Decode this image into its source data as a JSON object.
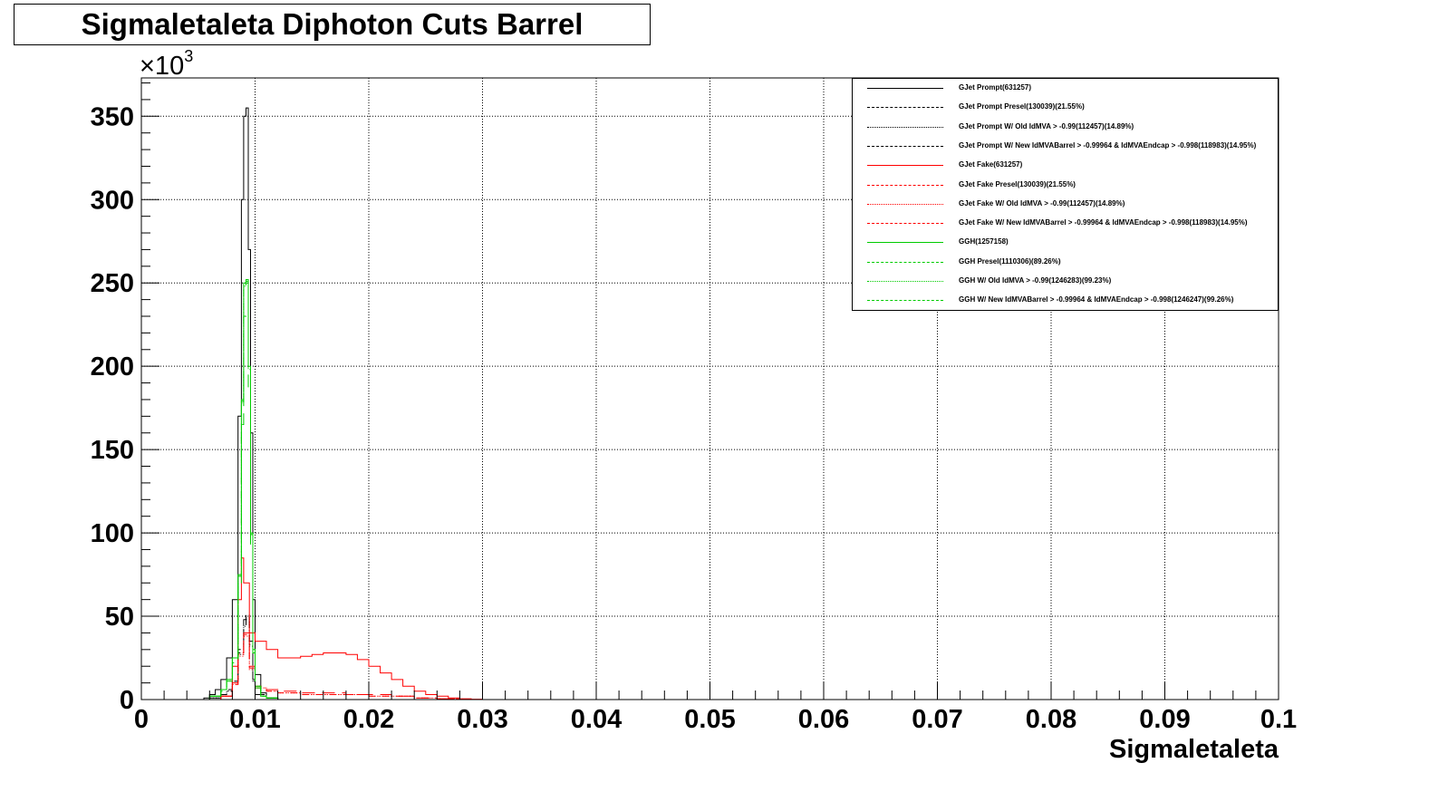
{
  "chart_data": {
    "type": "line",
    "title": "Sigmaletaleta Diphoton Cuts Barrel",
    "xlabel": "Sigmaletaleta",
    "ylabel": "",
    "y_multiplier_label": "×10",
    "y_multiplier_exponent": "3",
    "xlim": [
      0,
      0.1
    ],
    "ylim": [
      0,
      373
    ],
    "x_major_ticks": [
      0,
      0.01,
      0.02,
      0.03,
      0.04,
      0.05,
      0.06,
      0.07,
      0.08,
      0.09,
      0.1
    ],
    "x_tick_labels": [
      "0",
      "0.01",
      "0.02",
      "0.03",
      "0.04",
      "0.05",
      "0.06",
      "0.07",
      "0.08",
      "0.09",
      "0.1"
    ],
    "y_major_ticks": [
      0,
      50,
      100,
      150,
      200,
      250,
      300,
      350
    ],
    "y_tick_labels": [
      "0",
      "50",
      "100",
      "150",
      "200",
      "250",
      "300",
      "350"
    ],
    "grid": true,
    "legend_position": "top-right",
    "series": [
      {
        "name": "GJet Prompt(631257)",
        "color": "#000000",
        "dash": "solid",
        "x": [
          0.005,
          0.0055,
          0.006,
          0.0065,
          0.007,
          0.0075,
          0.008,
          0.0085,
          0.0088,
          0.009,
          0.0092,
          0.0094,
          0.0096,
          0.0098,
          0.01,
          0.0105,
          0.011,
          0.012
        ],
        "y": [
          0,
          1,
          3,
          6,
          12,
          25,
          60,
          170,
          300,
          350,
          355,
          270,
          160,
          60,
          15,
          4,
          1,
          0
        ]
      },
      {
        "name": "GJet Prompt Presel(130039)(21.55%)",
        "color": "#000000",
        "dash": "longdash",
        "x": [
          0.005,
          0.006,
          0.007,
          0.0075,
          0.008,
          0.0085,
          0.009,
          0.0092,
          0.0095,
          0.0098,
          0.01,
          0.011,
          0.012
        ],
        "y": [
          0,
          1,
          3,
          6,
          12,
          30,
          48,
          52,
          35,
          12,
          3,
          1,
          0
        ]
      },
      {
        "name": "GJet Prompt W/ Old IdMVA > -0.99(112457)(14.89%)",
        "color": "#000000",
        "dash": "dotted",
        "x": [
          0.005,
          0.006,
          0.007,
          0.0075,
          0.008,
          0.0085,
          0.009,
          0.0092,
          0.0095,
          0.0098,
          0.01,
          0.011,
          0.012
        ],
        "y": [
          0,
          1,
          3,
          5,
          11,
          27,
          44,
          48,
          32,
          11,
          3,
          1,
          0
        ]
      },
      {
        "name": "GJet Prompt W/ New IdMVABarrel > -0.99964 & IdMVAEndcap > -0.998(118983)(14.95%)",
        "color": "#000000",
        "dash": "dashdot",
        "x": [
          0.005,
          0.006,
          0.007,
          0.0075,
          0.008,
          0.0085,
          0.009,
          0.0092,
          0.0095,
          0.0098,
          0.01,
          0.011,
          0.012
        ],
        "y": [
          0,
          1,
          3,
          5,
          11,
          28,
          45,
          49,
          33,
          11,
          3,
          1,
          0
        ]
      },
      {
        "name": "GJet Fake(631257)",
        "color": "#ff0000",
        "dash": "solid",
        "x": [
          0.006,
          0.007,
          0.008,
          0.0085,
          0.0088,
          0.009,
          0.0095,
          0.01,
          0.011,
          0.012,
          0.013,
          0.014,
          0.015,
          0.016,
          0.017,
          0.018,
          0.019,
          0.02,
          0.021,
          0.022,
          0.023,
          0.024,
          0.025,
          0.026,
          0.027,
          0.028,
          0.029,
          0.03
        ],
        "y": [
          0,
          2,
          20,
          60,
          85,
          70,
          40,
          35,
          30,
          25,
          25,
          26,
          27,
          28,
          28,
          27,
          24,
          20,
          16,
          12,
          8,
          5,
          3,
          2,
          1,
          0.5,
          0.2,
          0
        ]
      },
      {
        "name": "GJet Fake Presel(130039)(21.55%)",
        "color": "#ff0000",
        "dash": "longdash",
        "x": [
          0.006,
          0.007,
          0.008,
          0.0085,
          0.009,
          0.0095,
          0.01,
          0.011,
          0.012,
          0.014,
          0.016,
          0.018,
          0.02,
          0.022,
          0.024,
          0.026,
          0.028
        ],
        "y": [
          0,
          2,
          10,
          28,
          40,
          20,
          8,
          6,
          5,
          4,
          4,
          3,
          3,
          2,
          1,
          0.5,
          0
        ]
      },
      {
        "name": "GJet Fake W/ Old IdMVA > -0.99(112457)(14.89%)",
        "color": "#ff0000",
        "dash": "dotted",
        "x": [
          0.006,
          0.007,
          0.008,
          0.0085,
          0.009,
          0.0095,
          0.01,
          0.011,
          0.012,
          0.014,
          0.016,
          0.018,
          0.02,
          0.022,
          0.024,
          0.026,
          0.028
        ],
        "y": [
          0,
          2,
          9,
          26,
          38,
          18,
          7,
          5,
          4,
          3,
          3,
          3,
          2,
          2,
          1,
          0.5,
          0
        ]
      },
      {
        "name": "GJet Fake W/ New IdMVABarrel > -0.99964 & IdMVAEndcap > -0.998(118983)(14.95%)",
        "color": "#ff0000",
        "dash": "dashdot",
        "x": [
          0.006,
          0.007,
          0.008,
          0.0085,
          0.009,
          0.0095,
          0.01,
          0.011,
          0.012,
          0.014,
          0.016,
          0.018,
          0.02,
          0.022,
          0.024,
          0.026,
          0.028
        ],
        "y": [
          0,
          2,
          9,
          27,
          39,
          19,
          7,
          5,
          4,
          3,
          3,
          3,
          2,
          2,
          1,
          0.5,
          0
        ]
      },
      {
        "name": "GGH(1257158)",
        "color": "#00cc00",
        "dash": "solid",
        "x": [
          0.005,
          0.006,
          0.007,
          0.0075,
          0.008,
          0.0085,
          0.0088,
          0.009,
          0.0092,
          0.0094,
          0.0096,
          0.0098,
          0.01,
          0.0105,
          0.011,
          0.012
        ],
        "y": [
          0,
          2,
          6,
          12,
          25,
          75,
          180,
          250,
          252,
          200,
          100,
          30,
          8,
          2,
          1,
          0
        ]
      },
      {
        "name": "GGH Presel(1110306)(89.26%)",
        "color": "#00cc00",
        "dash": "longdash",
        "x": [
          0.005,
          0.006,
          0.007,
          0.0075,
          0.008,
          0.0085,
          0.0088,
          0.009,
          0.0092,
          0.0094,
          0.0096,
          0.0098,
          0.01,
          0.0105,
          0.011,
          0.012
        ],
        "y": [
          0,
          2,
          5,
          11,
          22,
          68,
          165,
          230,
          232,
          185,
          92,
          28,
          7,
          2,
          1,
          0
        ]
      },
      {
        "name": "GGH W/ Old IdMVA > -0.99(1246283)(99.23%)",
        "color": "#00cc00",
        "dash": "dotted",
        "x": [
          0.005,
          0.006,
          0.007,
          0.0075,
          0.008,
          0.0085,
          0.0088,
          0.009,
          0.0092,
          0.0094,
          0.0096,
          0.0098,
          0.01,
          0.0105,
          0.011,
          0.012
        ],
        "y": [
          0,
          2,
          6,
          12,
          25,
          74,
          178,
          248,
          250,
          198,
          99,
          30,
          8,
          2,
          1,
          0
        ]
      },
      {
        "name": "GGH W/ New IdMVABarrel > -0.99964 & IdMVAEndcap > -0.998(1246247)(99.26%)",
        "color": "#00cc00",
        "dash": "dashdot",
        "x": [
          0.005,
          0.006,
          0.007,
          0.0075,
          0.008,
          0.0085,
          0.0088,
          0.009,
          0.0092,
          0.0094,
          0.0096,
          0.0098,
          0.01,
          0.0105,
          0.011,
          0.012
        ],
        "y": [
          0,
          2,
          6,
          12,
          25,
          74,
          179,
          249,
          251,
          199,
          99,
          30,
          8,
          2,
          1,
          0
        ]
      }
    ]
  }
}
